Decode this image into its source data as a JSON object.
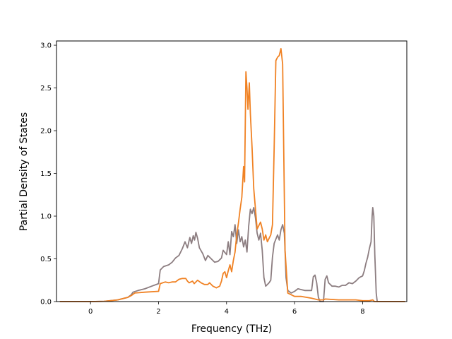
{
  "chart_data": {
    "type": "line",
    "title": "",
    "xlabel": "Frequency (THz)",
    "ylabel": "Partial Density of States",
    "xlim": [
      -1.0,
      9.3
    ],
    "ylim": [
      0.0,
      3.05
    ],
    "xticks": [
      0,
      2,
      4,
      6,
      8
    ],
    "yticks": [
      0.0,
      0.5,
      1.0,
      1.5,
      2.0,
      2.5,
      3.0
    ],
    "xtick_labels": [
      "0",
      "2",
      "4",
      "6",
      "8"
    ],
    "ytick_labels": [
      "0.0",
      "0.5",
      "1.0",
      "1.5",
      "2.0",
      "2.5",
      "3.0"
    ],
    "grid": false,
    "series": [
      {
        "color": "#8c7d80",
        "points": [
          [
            -0.9,
            0.0
          ],
          [
            0.0,
            0.0
          ],
          [
            0.4,
            0.003
          ],
          [
            0.8,
            0.02
          ],
          [
            1.1,
            0.05
          ],
          [
            1.2,
            0.08
          ],
          [
            1.25,
            0.11
          ],
          [
            1.4,
            0.13
          ],
          [
            1.6,
            0.15
          ],
          [
            1.8,
            0.18
          ],
          [
            2.0,
            0.21
          ],
          [
            2.05,
            0.37
          ],
          [
            2.15,
            0.41
          ],
          [
            2.3,
            0.43
          ],
          [
            2.4,
            0.46
          ],
          [
            2.5,
            0.51
          ],
          [
            2.6,
            0.54
          ],
          [
            2.7,
            0.62
          ],
          [
            2.78,
            0.7
          ],
          [
            2.85,
            0.63
          ],
          [
            2.92,
            0.75
          ],
          [
            2.97,
            0.68
          ],
          [
            3.02,
            0.77
          ],
          [
            3.06,
            0.72
          ],
          [
            3.1,
            0.81
          ],
          [
            3.15,
            0.74
          ],
          [
            3.2,
            0.63
          ],
          [
            3.3,
            0.56
          ],
          [
            3.38,
            0.48
          ],
          [
            3.45,
            0.54
          ],
          [
            3.55,
            0.5
          ],
          [
            3.65,
            0.46
          ],
          [
            3.75,
            0.47
          ],
          [
            3.85,
            0.51
          ],
          [
            3.9,
            0.6
          ],
          [
            4.0,
            0.55
          ],
          [
            4.05,
            0.7
          ],
          [
            4.1,
            0.55
          ],
          [
            4.15,
            0.82
          ],
          [
            4.2,
            0.76
          ],
          [
            4.25,
            0.9
          ],
          [
            4.3,
            0.68
          ],
          [
            4.35,
            0.84
          ],
          [
            4.4,
            0.7
          ],
          [
            4.45,
            0.76
          ],
          [
            4.5,
            0.64
          ],
          [
            4.55,
            0.72
          ],
          [
            4.6,
            0.58
          ],
          [
            4.65,
            0.88
          ],
          [
            4.7,
            1.08
          ],
          [
            4.75,
            1.03
          ],
          [
            4.8,
            1.1
          ],
          [
            4.85,
            0.98
          ],
          [
            4.9,
            0.8
          ],
          [
            4.95,
            0.72
          ],
          [
            5.0,
            0.8
          ],
          [
            5.05,
            0.6
          ],
          [
            5.1,
            0.28
          ],
          [
            5.15,
            0.18
          ],
          [
            5.25,
            0.22
          ],
          [
            5.3,
            0.25
          ],
          [
            5.35,
            0.52
          ],
          [
            5.4,
            0.68
          ],
          [
            5.5,
            0.78
          ],
          [
            5.55,
            0.72
          ],
          [
            5.6,
            0.84
          ],
          [
            5.65,
            0.9
          ],
          [
            5.7,
            0.8
          ],
          [
            5.72,
            0.6
          ],
          [
            5.75,
            0.28
          ],
          [
            5.8,
            0.13
          ],
          [
            5.9,
            0.1
          ],
          [
            6.0,
            0.12
          ],
          [
            6.1,
            0.15
          ],
          [
            6.2,
            0.14
          ],
          [
            6.3,
            0.13
          ],
          [
            6.4,
            0.13
          ],
          [
            6.5,
            0.13
          ],
          [
            6.55,
            0.29
          ],
          [
            6.6,
            0.31
          ],
          [
            6.65,
            0.22
          ],
          [
            6.7,
            0.05
          ],
          [
            6.75,
            0.0
          ],
          [
            6.85,
            0.0
          ],
          [
            6.9,
            0.26
          ],
          [
            6.95,
            0.3
          ],
          [
            7.0,
            0.22
          ],
          [
            7.1,
            0.18
          ],
          [
            7.2,
            0.18
          ],
          [
            7.3,
            0.17
          ],
          [
            7.4,
            0.19
          ],
          [
            7.5,
            0.19
          ],
          [
            7.6,
            0.22
          ],
          [
            7.7,
            0.21
          ],
          [
            7.8,
            0.24
          ],
          [
            7.9,
            0.28
          ],
          [
            8.0,
            0.3
          ],
          [
            8.05,
            0.36
          ],
          [
            8.1,
            0.45
          ],
          [
            8.15,
            0.52
          ],
          [
            8.2,
            0.62
          ],
          [
            8.25,
            0.7
          ],
          [
            8.28,
            1.0
          ],
          [
            8.3,
            1.1
          ],
          [
            8.33,
            1.0
          ],
          [
            8.36,
            0.55
          ],
          [
            8.4,
            0.1
          ],
          [
            8.43,
            0.0
          ],
          [
            9.25,
            0.0
          ]
        ]
      },
      {
        "color": "#f08224",
        "points": [
          [
            -0.9,
            0.0
          ],
          [
            0.0,
            0.0
          ],
          [
            0.4,
            0.003
          ],
          [
            0.8,
            0.02
          ],
          [
            1.1,
            0.05
          ],
          [
            1.2,
            0.07
          ],
          [
            1.3,
            0.1
          ],
          [
            1.6,
            0.11
          ],
          [
            2.0,
            0.12
          ],
          [
            2.05,
            0.21
          ],
          [
            2.2,
            0.23
          ],
          [
            2.3,
            0.22
          ],
          [
            2.4,
            0.23
          ],
          [
            2.5,
            0.23
          ],
          [
            2.6,
            0.26
          ],
          [
            2.7,
            0.27
          ],
          [
            2.8,
            0.27
          ],
          [
            2.85,
            0.24
          ],
          [
            2.9,
            0.22
          ],
          [
            3.0,
            0.24
          ],
          [
            3.05,
            0.21
          ],
          [
            3.15,
            0.25
          ],
          [
            3.25,
            0.22
          ],
          [
            3.35,
            0.2
          ],
          [
            3.45,
            0.2
          ],
          [
            3.5,
            0.22
          ],
          [
            3.6,
            0.18
          ],
          [
            3.7,
            0.16
          ],
          [
            3.8,
            0.18
          ],
          [
            3.85,
            0.24
          ],
          [
            3.9,
            0.33
          ],
          [
            3.95,
            0.35
          ],
          [
            4.0,
            0.28
          ],
          [
            4.05,
            0.36
          ],
          [
            4.1,
            0.43
          ],
          [
            4.15,
            0.35
          ],
          [
            4.2,
            0.48
          ],
          [
            4.25,
            0.58
          ],
          [
            4.3,
            0.78
          ],
          [
            4.35,
            0.92
          ],
          [
            4.4,
            1.08
          ],
          [
            4.45,
            1.22
          ],
          [
            4.5,
            1.58
          ],
          [
            4.53,
            1.4
          ],
          [
            4.57,
            2.69
          ],
          [
            4.6,
            2.5
          ],
          [
            4.63,
            2.25
          ],
          [
            4.67,
            2.56
          ],
          [
            4.7,
            2.2
          ],
          [
            4.75,
            1.8
          ],
          [
            4.8,
            1.32
          ],
          [
            4.9,
            0.85
          ],
          [
            5.0,
            0.93
          ],
          [
            5.05,
            0.85
          ],
          [
            5.1,
            0.72
          ],
          [
            5.15,
            0.78
          ],
          [
            5.2,
            0.7
          ],
          [
            5.3,
            0.78
          ],
          [
            5.35,
            0.9
          ],
          [
            5.4,
            1.8
          ],
          [
            5.45,
            2.82
          ],
          [
            5.5,
            2.86
          ],
          [
            5.55,
            2.88
          ],
          [
            5.6,
            2.96
          ],
          [
            5.65,
            2.78
          ],
          [
            5.68,
            1.8
          ],
          [
            5.72,
            0.6
          ],
          [
            5.8,
            0.1
          ],
          [
            6.0,
            0.06
          ],
          [
            6.2,
            0.06
          ],
          [
            6.5,
            0.04
          ],
          [
            6.7,
            0.02
          ],
          [
            6.85,
            0.02
          ],
          [
            6.9,
            0.03
          ],
          [
            7.3,
            0.02
          ],
          [
            7.8,
            0.02
          ],
          [
            8.0,
            0.01
          ],
          [
            8.2,
            0.01
          ],
          [
            8.3,
            0.02
          ],
          [
            8.35,
            0.0
          ],
          [
            8.45,
            0.0
          ],
          [
            9.25,
            0.0
          ]
        ]
      }
    ]
  }
}
